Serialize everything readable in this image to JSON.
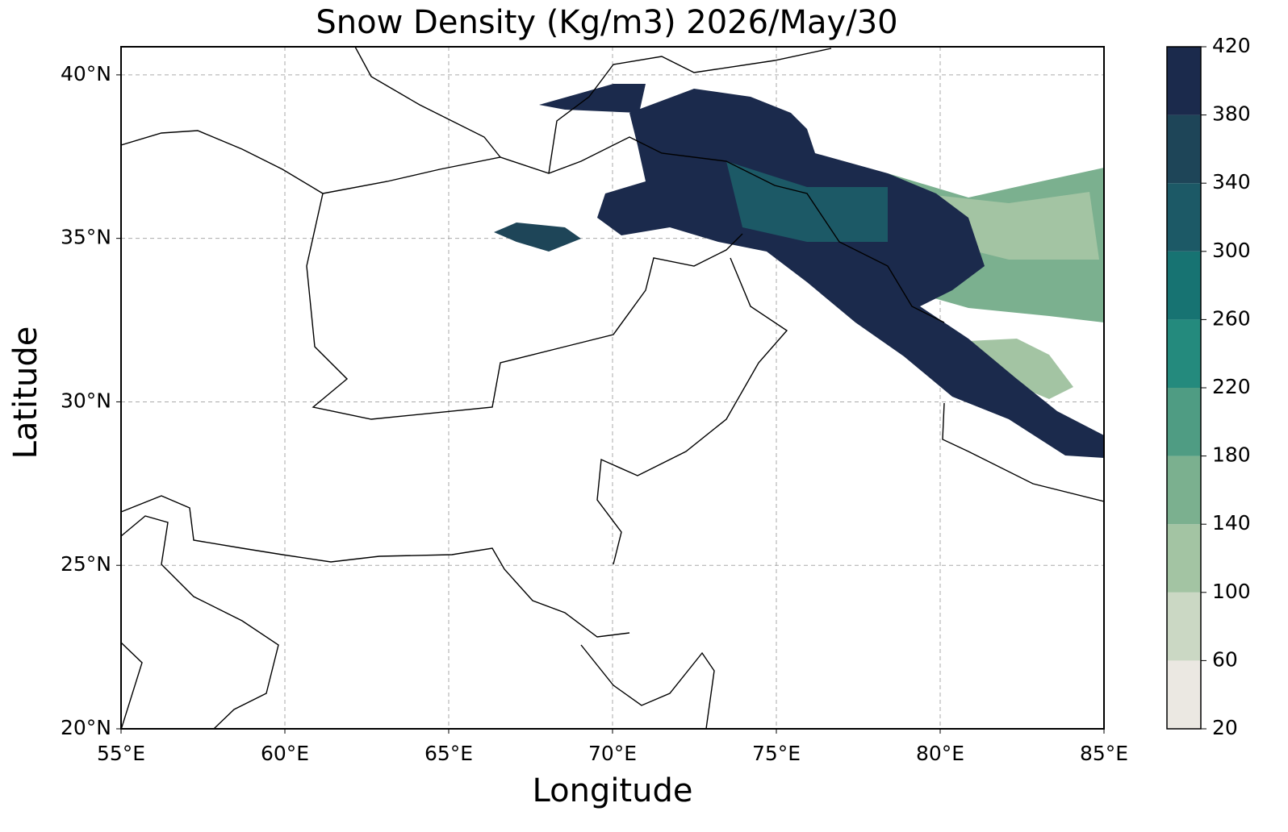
{
  "chart_data": {
    "type": "map",
    "title": "Snow Density (Kg/m3) 2026/May/30",
    "x_label": "Longitude",
    "y_label": "Latitude",
    "xlim": [
      55,
      85
    ],
    "ylim": [
      20,
      40.86
    ],
    "xticks": [
      {
        "value": 55,
        "label": "55°E"
      },
      {
        "value": 60,
        "label": "60°E"
      },
      {
        "value": 65,
        "label": "65°E"
      },
      {
        "value": 70,
        "label": "70°E"
      },
      {
        "value": 75,
        "label": "75°E"
      },
      {
        "value": 80,
        "label": "80°E"
      },
      {
        "value": 85,
        "label": "85°E"
      }
    ],
    "yticks": [
      {
        "value": 20,
        "label": "20°N"
      },
      {
        "value": 25,
        "label": "25°N"
      },
      {
        "value": 30,
        "label": "30°N"
      },
      {
        "value": 35,
        "label": "35°N"
      },
      {
        "value": 40,
        "label": "40°N"
      }
    ],
    "grid": true,
    "colorbar": {
      "ticks": [
        20,
        60,
        100,
        140,
        180,
        220,
        260,
        300,
        340,
        380,
        420
      ],
      "colors": [
        "#ebe8e2",
        "#cbd8c4",
        "#a3c4a3",
        "#7bb08f",
        "#4f9c83",
        "#248a7d",
        "#177372",
        "#1c5966",
        "#1e4558",
        "#1b2a4c"
      ]
    }
  }
}
